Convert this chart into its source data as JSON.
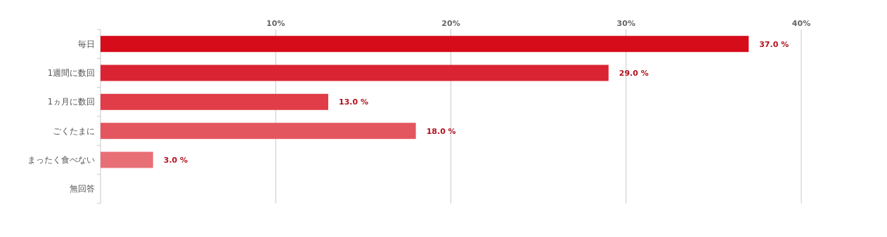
{
  "chart_data": {
    "type": "bar",
    "orientation": "horizontal",
    "categories": [
      "毎日",
      "1週間に数回",
      "1ヵ月に数回",
      "ごくたまに",
      "まったく食べない",
      "無回答"
    ],
    "values": [
      37,
      29,
      13,
      18,
      3,
      0
    ],
    "value_labels": [
      "37.0 %",
      "29.0 %",
      "13.0 %",
      "18.0 %",
      "3.0 %",
      null
    ],
    "colors": [
      "#d70c1a",
      "#db2433",
      "#e03d48",
      "#e4565f",
      "#e96f76",
      "#ed8890"
    ],
    "xlim": [
      0,
      40
    ],
    "xticks": [
      {
        "value": 10,
        "label": "10%"
      },
      {
        "value": 20,
        "label": "20%"
      },
      {
        "value": 30,
        "label": "30%"
      },
      {
        "value": 40,
        "label": "40%"
      }
    ],
    "grid": "x"
  }
}
